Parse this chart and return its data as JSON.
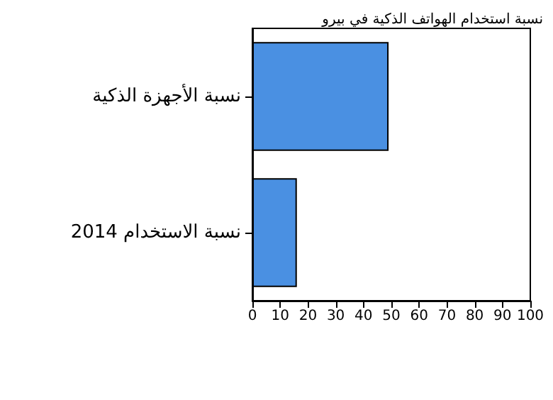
{
  "chart_data": {
    "type": "bar",
    "orientation": "horizontal",
    "title": "نسبة استخدام الهواتف الذكية في بيرو",
    "categories": [
      "نسبة الأجهزة الذكية",
      "نسبة الاستخدام 2014"
    ],
    "values": [
      49,
      16
    ],
    "color": "#4a90e2",
    "xlim": [
      0,
      100
    ],
    "xticks": [
      0,
      10,
      20,
      30,
      40,
      50,
      60,
      70,
      80,
      90,
      100
    ],
    "grid": false
  }
}
